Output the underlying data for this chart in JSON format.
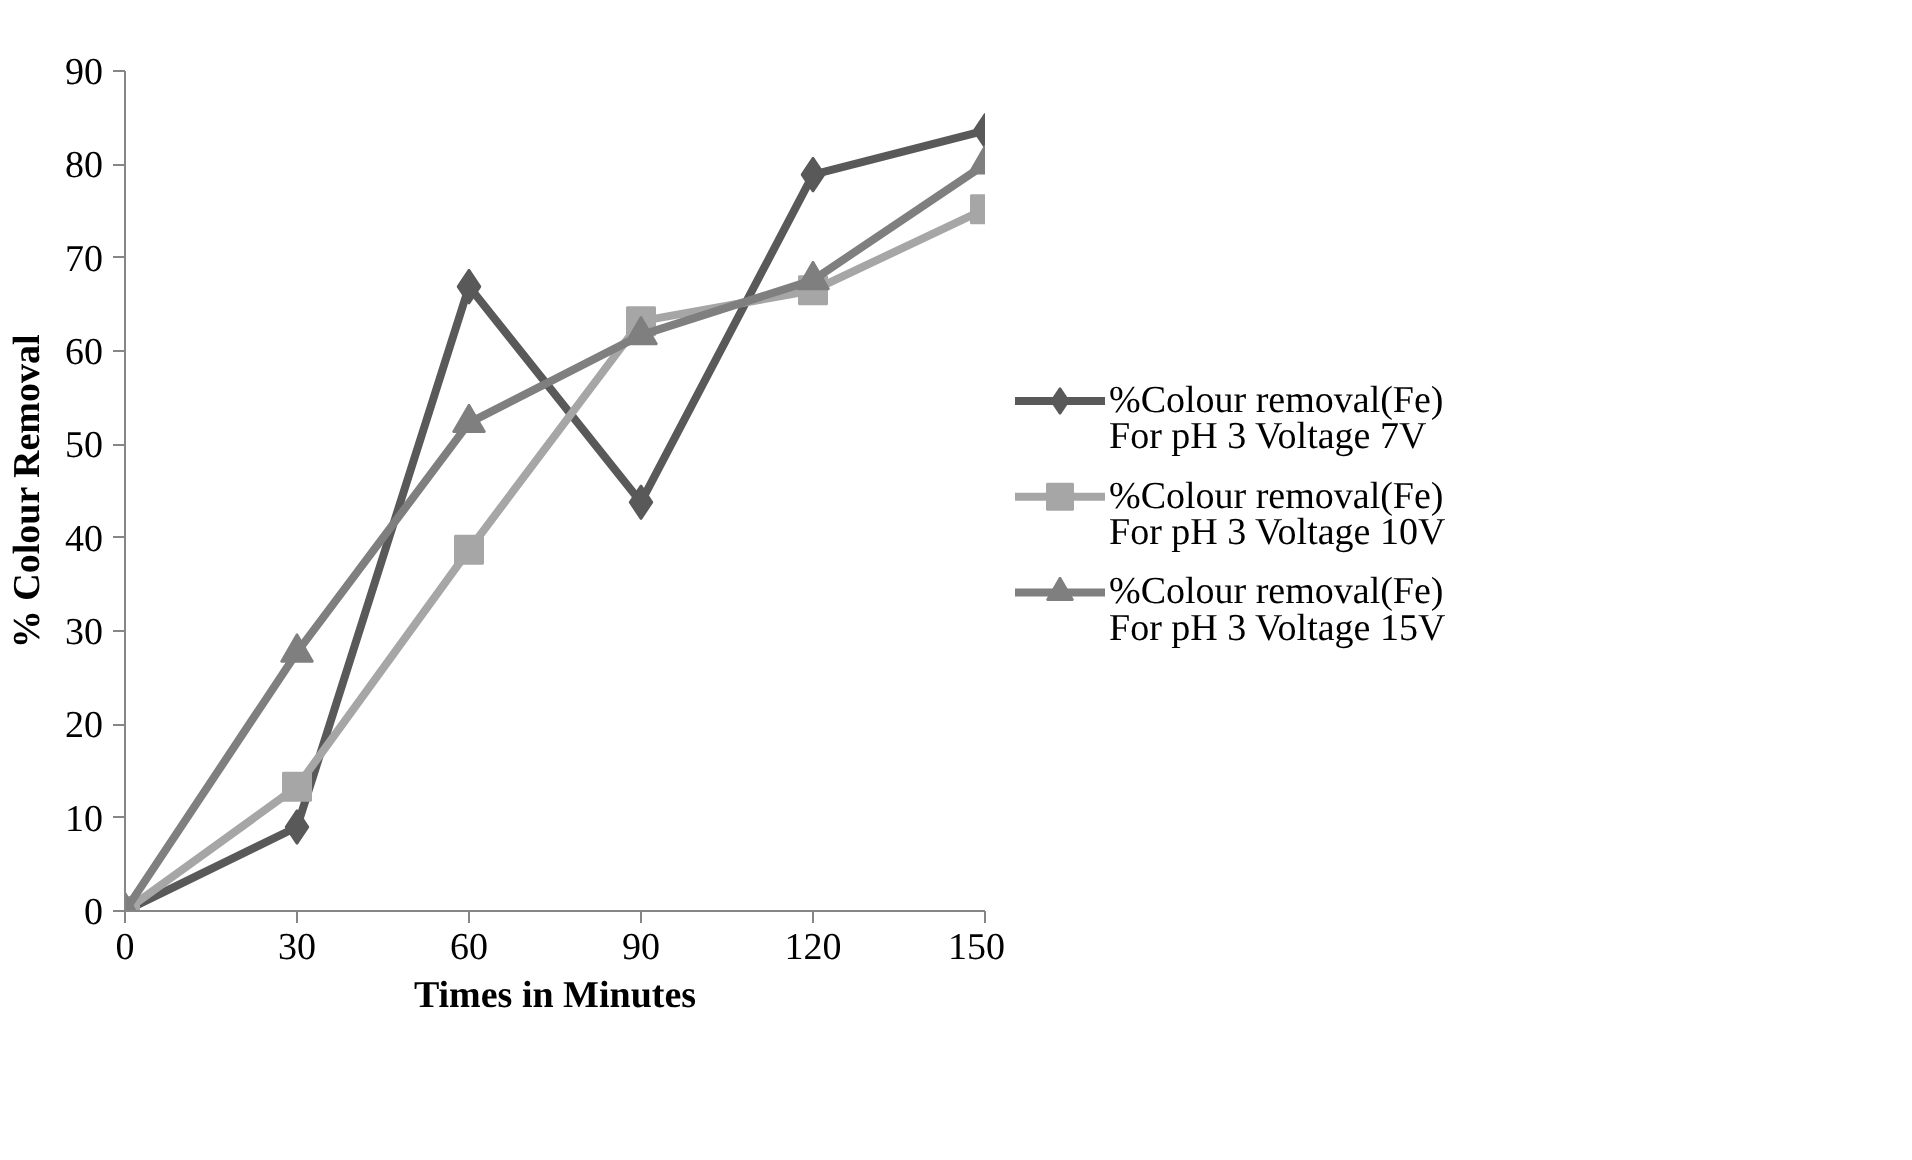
{
  "chart_data": {
    "type": "line",
    "xlabel": "Times in Minutes",
    "ylabel": "% Colour Removal",
    "x": [
      0,
      30,
      60,
      90,
      120,
      150
    ],
    "xlim": [
      0,
      150
    ],
    "xticks": [
      0,
      30,
      60,
      90,
      120,
      150
    ],
    "ylim": [
      0,
      90
    ],
    "yticks": [
      0,
      10,
      20,
      30,
      40,
      50,
      60,
      70,
      80,
      90
    ],
    "grid": false,
    "legend": "right",
    "series": [
      {
        "name": "%Colour removal(Fe)\nFor pH 3  Voltage 7V",
        "color": "#595959",
        "marker": "diamond",
        "values": [
          0,
          9.0,
          66.9,
          43.8,
          78.9,
          83.6
        ]
      },
      {
        "name": "%Colour removal(Fe)\nFor pH 3  Voltage 10V",
        "color": "#a6a6a6",
        "marker": "square",
        "values": [
          0,
          13.3,
          38.7,
          63.2,
          66.5,
          75.2
        ]
      },
      {
        "name": "%Colour removal(Fe)\nFor pH 3  Voltage 15V",
        "color": "#7f7f7f",
        "marker": "triangle",
        "values": [
          0,
          27.7,
          52.3,
          61.7,
          67.6,
          80.0
        ]
      }
    ]
  }
}
